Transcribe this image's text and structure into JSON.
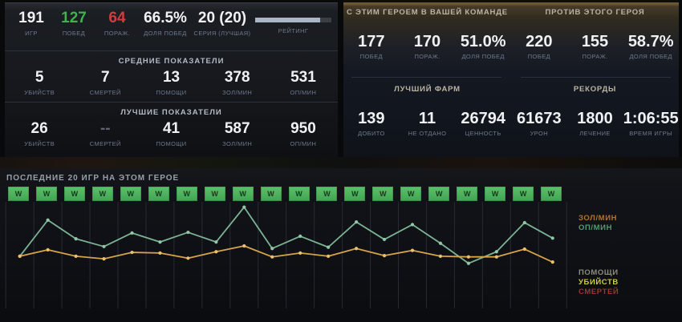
{
  "colors": {
    "win_green": "#3fb24c",
    "loss_red": "#cf3e3e",
    "rating_fill": "#aab5c7",
    "wtile_green": "#4db05c",
    "gold_line": "#d6a349",
    "xp_line": "#7cb493"
  },
  "left_panel": {
    "main": [
      {
        "value": "191",
        "label": "ИГР"
      },
      {
        "value": "127",
        "label": "ПОБЕД"
      },
      {
        "value": "64",
        "label": "ПОРАЖ."
      },
      {
        "value": "66.5%",
        "label": "ДОЛЯ ПОБЕД"
      },
      {
        "value": "20 (20)",
        "label": "СЕРИЯ (ЛУЧШАЯ)"
      }
    ],
    "rating": {
      "label": "РЕЙТИНГ",
      "fill_pct": 85
    },
    "sections": [
      {
        "title": "СРЕДНИЕ ПОКАЗАТЕЛИ",
        "stats": [
          {
            "value": "5",
            "label": "УБИЙСТВ"
          },
          {
            "value": "7",
            "label": "СМЕРТЕЙ"
          },
          {
            "value": "13",
            "label": "ПОМОЩИ"
          },
          {
            "value": "378",
            "label": "ЗОЛ/МИН"
          },
          {
            "value": "531",
            "label": "ОП/МИН"
          }
        ]
      },
      {
        "title": "ЛУЧШИЕ ПОКАЗАТЕЛИ",
        "stats": [
          {
            "value": "26",
            "label": "УБИЙСТВ"
          },
          {
            "value": "--",
            "label": "СМЕРТЕЙ"
          },
          {
            "value": "41",
            "label": "ПОМОЩИ"
          },
          {
            "value": "587",
            "label": "ЗОЛ/МИН"
          },
          {
            "value": "950",
            "label": "ОП/МИН"
          }
        ]
      }
    ]
  },
  "right_panel": {
    "groups": [
      {
        "title": "С ЭТИМ ГЕРОЕМ В ВАШЕЙ КОМАНДЕ",
        "stats": [
          {
            "value": "177",
            "label": "ПОБЕД"
          },
          {
            "value": "170",
            "label": "ПОРАЖ."
          },
          {
            "value": "51.0%",
            "label": "ДОЛЯ ПОБЕД"
          }
        ]
      },
      {
        "title": "ПРОТИВ ЭТОГО ГЕРОЯ",
        "stats": [
          {
            "value": "220",
            "label": "ПОБЕД"
          },
          {
            "value": "155",
            "label": "ПОРАЖ."
          },
          {
            "value": "58.7%",
            "label": "ДОЛЯ ПОБЕД"
          }
        ]
      },
      {
        "title": "ЛУЧШИЙ ФАРМ",
        "stats": [
          {
            "value": "139",
            "label": "ДОБИТО"
          },
          {
            "value": "11",
            "label": "НЕ ОТДАНО"
          },
          {
            "value": "26794",
            "label": "ЦЕННОСТЬ"
          }
        ]
      },
      {
        "title": "РЕКОРДЫ",
        "stats": [
          {
            "value": "61673",
            "label": "УРОН"
          },
          {
            "value": "1800",
            "label": "ЛЕЧЕНИЕ"
          },
          {
            "value": "1:06:55",
            "label": "ВРЕМЯ ИГРЫ"
          }
        ]
      }
    ]
  },
  "recent": {
    "title": "ПОСЛЕДНИЕ 20 ИГР НА ЭТОМ ГЕРОЕ",
    "results": [
      "W",
      "W",
      "W",
      "W",
      "W",
      "W",
      "W",
      "W",
      "W",
      "W",
      "W",
      "W",
      "W",
      "W",
      "W",
      "W",
      "W",
      "W",
      "W",
      "W"
    ]
  },
  "chart_data": {
    "type": "line",
    "x": [
      1,
      2,
      3,
      4,
      5,
      6,
      7,
      8,
      9,
      10,
      11,
      12,
      13,
      14,
      15,
      16,
      17,
      18,
      19,
      20
    ],
    "series": [
      {
        "name": "ЗОЛ/МИН",
        "color": "#d6a349",
        "point_color": "#ecc06a",
        "values": [
          385,
          435,
          385,
          365,
          415,
          410,
          370,
          420,
          465,
          380,
          410,
          385,
          445,
          390,
          430,
          385,
          380,
          380,
          440,
          340
        ]
      },
      {
        "name": "ОП/МИН",
        "color": "#7cb493",
        "point_color": "#93c6a6",
        "values": [
          385,
          665,
          520,
          460,
          565,
          495,
          570,
          495,
          765,
          445,
          540,
          455,
          650,
          515,
          630,
          485,
          330,
          420,
          645,
          525
        ]
      }
    ],
    "ylim": [
      0,
      810
    ],
    "grid": "vertical",
    "legend": [
      {
        "label": "ЗОЛ/МИН",
        "color": "#b5732a",
        "group": "top"
      },
      {
        "label": "ОП/МИН",
        "color": "#579a72",
        "group": "top"
      },
      {
        "label": "ПОМОЩИ",
        "color": "#8c8c7a",
        "group": "bottom"
      },
      {
        "label": "УБИЙСТВ",
        "color": "#cbcd3e",
        "group": "bottom"
      },
      {
        "label": "СМЕРТЕЙ",
        "color": "#9b3434",
        "group": "bottom"
      }
    ],
    "legend_position": "right"
  }
}
